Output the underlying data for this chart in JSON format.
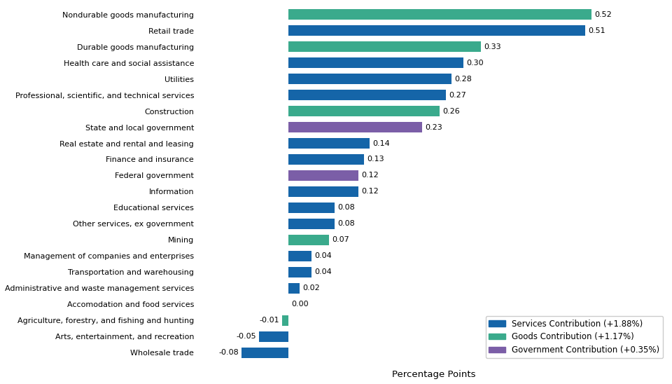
{
  "categories": [
    "Wholesale trade",
    "Arts, entertainment, and recreation",
    "Agriculture, forestry, and fishing and hunting",
    "Accomodation and food services",
    "Administrative and waste management services",
    "Transportation and warehousing",
    "Management of companies and enterprises",
    "Mining",
    "Other services, ex government",
    "Educational services",
    "Information",
    "Federal government",
    "Finance and insurance",
    "Real estate and rental and leasing",
    "State and local government",
    "Construction",
    "Professional, scientific, and technical services",
    "Utilities",
    "Health care and social assistance",
    "Durable goods manufacturing",
    "Retail trade",
    "Nondurable goods manufacturing"
  ],
  "values": [
    -0.08,
    -0.05,
    -0.01,
    0.0,
    0.02,
    0.04,
    0.04,
    0.07,
    0.08,
    0.08,
    0.12,
    0.12,
    0.13,
    0.14,
    0.23,
    0.26,
    0.27,
    0.28,
    0.3,
    0.33,
    0.51,
    0.52
  ],
  "colors": [
    "#1565a8",
    "#1565a8",
    "#3aaa8c",
    "#1565a8",
    "#1565a8",
    "#1565a8",
    "#1565a8",
    "#3aaa8c",
    "#1565a8",
    "#1565a8",
    "#1565a8",
    "#7b5ea7",
    "#1565a8",
    "#1565a8",
    "#7b5ea7",
    "#3aaa8c",
    "#1565a8",
    "#1565a8",
    "#1565a8",
    "#3aaa8c",
    "#1565a8",
    "#3aaa8c"
  ],
  "xlabel": "Percentage Points",
  "xlim": [
    -0.15,
    0.65
  ],
  "legend": [
    {
      "label": "Services Contribution (+1.88%)",
      "color": "#1565a8"
    },
    {
      "label": "Goods Contribution (+1.17%)",
      "color": "#3aaa8c"
    },
    {
      "label": "Government Contribution (+0.35%)",
      "color": "#7b5ea7"
    }
  ],
  "bar_height": 0.65,
  "figsize": [
    9.6,
    5.48
  ],
  "dpi": 100,
  "background_color": "#ffffff",
  "value_fontsize": 8.0,
  "label_fontsize": 8.0,
  "xlabel_fontsize": 9.5
}
